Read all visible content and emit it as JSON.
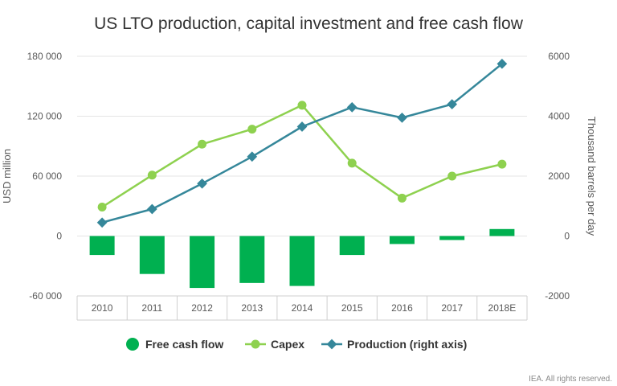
{
  "chart_data": {
    "type": "bar",
    "title": "US LTO production, capital investment and free cash flow",
    "categories": [
      "2010",
      "2011",
      "2012",
      "2013",
      "2014",
      "2015",
      "2016",
      "2017",
      "2018E"
    ],
    "ylabel": "USD million",
    "y2label": "Thousand barrels per day",
    "ylim": [
      -60000,
      180000
    ],
    "y2lim": [
      -2000,
      6000
    ],
    "y_ticks": [
      "-60 000",
      "0",
      "60 000",
      "120 000",
      "180 000"
    ],
    "y_tick_values": [
      -60000,
      0,
      60000,
      120000,
      180000
    ],
    "y2_ticks": [
      "-2000",
      "0",
      "2000",
      "4000",
      "6000"
    ],
    "y2_tick_values": [
      -2000,
      0,
      2000,
      4000,
      6000
    ],
    "grid": true,
    "legend_position": "bottom",
    "series": [
      {
        "name": "Free cash flow",
        "type": "bar",
        "axis": "left",
        "color": "#00b050",
        "values": [
          -19000,
          -38000,
          -52000,
          -47000,
          -50000,
          -19000,
          -8000,
          -4000,
          7000
        ]
      },
      {
        "name": "Capex",
        "type": "line",
        "axis": "left",
        "color": "#8ed14f",
        "values": [
          29000,
          61000,
          92000,
          107000,
          131000,
          73000,
          38000,
          60000,
          72000
        ]
      },
      {
        "name": "Production (right axis)",
        "type": "line",
        "axis": "right",
        "color": "#35879a",
        "values": [
          450,
          900,
          1750,
          2650,
          3650,
          4300,
          3950,
          4400,
          5750
        ]
      }
    ]
  },
  "footer": {
    "credit": "IEA. All rights reserved."
  }
}
